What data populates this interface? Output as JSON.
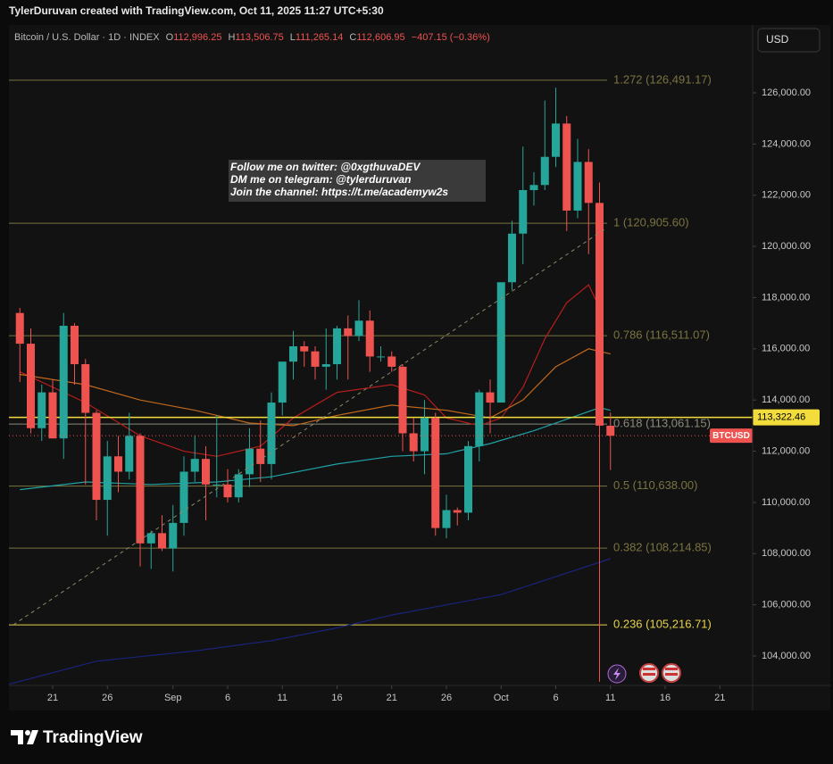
{
  "header": {
    "credit": "TylerDuruvan created with TradingView.com, Oct 11, 2025 11:27 UTC+5:30",
    "brand": "TradingView"
  },
  "chart_data": {
    "type": "candlestick",
    "symbol": "Bitcoin / U.S. Dollar · 1D · INDEX",
    "legend": [
      {
        "key": "O",
        "value": "112,996.25"
      },
      {
        "key": "H",
        "value": "113,506.75"
      },
      {
        "key": "L",
        "value": "111,265.14"
      },
      {
        "key": "C",
        "value": "112,606.95"
      }
    ],
    "change": "−407.15 (−0.36%)",
    "currency": "USD",
    "up_color": "#26a69a",
    "down_color": "#ef5350",
    "x": [
      "2025-08-18",
      "2025-08-19",
      "2025-08-20",
      "2025-08-21",
      "2025-08-22",
      "2025-08-23",
      "2025-08-24",
      "2025-08-25",
      "2025-08-26",
      "2025-08-27",
      "2025-08-28",
      "2025-08-29",
      "2025-08-30",
      "2025-08-31",
      "2025-09-01",
      "2025-09-02",
      "2025-09-03",
      "2025-09-04",
      "2025-09-05",
      "2025-09-06",
      "2025-09-07",
      "2025-09-08",
      "2025-09-09",
      "2025-09-10",
      "2025-09-11",
      "2025-09-12",
      "2025-09-13",
      "2025-09-14",
      "2025-09-15",
      "2025-09-16",
      "2025-09-17",
      "2025-09-18",
      "2025-09-19",
      "2025-09-20",
      "2025-09-21",
      "2025-09-22",
      "2025-09-23",
      "2025-09-24",
      "2025-09-25",
      "2025-09-26",
      "2025-09-27",
      "2025-09-28",
      "2025-09-29",
      "2025-09-30",
      "2025-10-01",
      "2025-10-02",
      "2025-10-03",
      "2025-10-04",
      "2025-10-05",
      "2025-10-06",
      "2025-10-07",
      "2025-10-08",
      "2025-10-09",
      "2025-10-10",
      "2025-10-11"
    ],
    "open": [
      117400,
      116200,
      112900,
      114300,
      112500,
      116900,
      115400,
      113500,
      110100,
      111800,
      111200,
      112600,
      108400,
      108800,
      108200,
      109200,
      111200,
      111700,
      110700,
      110700,
      110200,
      111100,
      112100,
      111500,
      113900,
      115500,
      116100,
      115900,
      115300,
      115400,
      116800,
      116500,
      117100,
      115700,
      115700,
      115300,
      112700,
      112000,
      113300,
      109000,
      109700,
      109600,
      112200,
      114300,
      113900,
      118600,
      120500,
      122200,
      122400,
      123500,
      124800,
      121400,
      123300,
      121700,
      112996.25
    ],
    "high": [
      117600,
      116800,
      114600,
      114800,
      117400,
      117000,
      115600,
      113600,
      112400,
      112600,
      113500,
      112700,
      108900,
      109500,
      109900,
      111800,
      112600,
      112200,
      113400,
      111300,
      111300,
      112900,
      113200,
      114300,
      115500,
      116700,
      116300,
      116100,
      116800,
      116900,
      117300,
      117900,
      117500,
      116100,
      115900,
      115400,
      113300,
      114000,
      113500,
      110300,
      109800,
      112400,
      114400,
      114800,
      118600,
      121000,
      123900,
      122900,
      125700,
      126200,
      125100,
      124200,
      123800,
      122500,
      113506.75
    ],
    "low": [
      114700,
      112700,
      112400,
      112600,
      111700,
      114600,
      110700,
      109300,
      108700,
      110400,
      110900,
      107500,
      107400,
      108100,
      107300,
      108700,
      110800,
      109300,
      110200,
      110000,
      110000,
      110600,
      110800,
      110900,
      113400,
      114800,
      115300,
      114800,
      114400,
      114800,
      114800,
      116300,
      115100,
      115500,
      115100,
      112000,
      111600,
      111100,
      108700,
      108600,
      109100,
      109300,
      111600,
      112700,
      113900,
      118300,
      119300,
      121600,
      122200,
      123100,
      120600,
      121100,
      119700,
      103000,
      111265.14
    ],
    "close": [
      116200,
      112900,
      114300,
      112500,
      116900,
      115400,
      113500,
      110100,
      111800,
      111200,
      112600,
      108400,
      108800,
      108200,
      109200,
      111200,
      111700,
      110700,
      110700,
      110200,
      111100,
      112100,
      111500,
      113900,
      115500,
      116100,
      115900,
      115300,
      115400,
      116800,
      116500,
      117100,
      115700,
      115700,
      115300,
      112700,
      112000,
      113300,
      109000,
      109700,
      109600,
      112200,
      114300,
      113900,
      118600,
      120500,
      122200,
      122400,
      123500,
      124800,
      121400,
      123300,
      121700,
      113000,
      112606.95
    ],
    "overlays": [
      {
        "color": "#b71c1c",
        "x": [
          "2025-08-18",
          "2025-08-24",
          "2025-08-29",
          "2025-09-02",
          "2025-09-05",
          "2025-09-09",
          "2025-09-12",
          "2025-09-16",
          "2025-09-21",
          "2025-09-24",
          "2025-09-26",
          "2025-09-29",
          "2025-10-01",
          "2025-10-03",
          "2025-10-05",
          "2025-10-07",
          "2025-10-09",
          "2025-10-10"
        ],
        "values": [
          115100,
          113900,
          112600,
          112000,
          111800,
          112200,
          113300,
          114300,
          114600,
          114200,
          113300,
          113000,
          113300,
          114500,
          116400,
          117800,
          118500,
          117600
        ]
      },
      {
        "color": "#c0681c",
        "x": [
          "2025-08-18",
          "2025-08-24",
          "2025-08-29",
          "2025-09-03",
          "2025-09-08",
          "2025-09-12",
          "2025-09-16",
          "2025-09-21",
          "2025-09-26",
          "2025-09-30",
          "2025-10-03",
          "2025-10-06",
          "2025-10-09",
          "2025-10-11"
        ],
        "values": [
          115000,
          114600,
          114000,
          113600,
          113100,
          113000,
          113400,
          113800,
          113600,
          113300,
          114000,
          115300,
          116000,
          115800
        ]
      },
      {
        "color": "#1fa2a6",
        "x": [
          "2025-08-18",
          "2025-08-24",
          "2025-08-30",
          "2025-09-05",
          "2025-09-10",
          "2025-09-16",
          "2025-09-21",
          "2025-09-26",
          "2025-09-30",
          "2025-10-04",
          "2025-10-08",
          "2025-10-10",
          "2025-10-11"
        ],
        "values": [
          110500,
          110800,
          110700,
          110800,
          111000,
          111500,
          111800,
          111900,
          112300,
          112800,
          113400,
          113700,
          113600
        ]
      },
      {
        "color": "#1a237e",
        "x": [
          "2025-08-17",
          "2025-08-25",
          "2025-09-03",
          "2025-09-10",
          "2025-09-16",
          "2025-09-21",
          "2025-09-26",
          "2025-10-01",
          "2025-10-06",
          "2025-10-11"
        ],
        "values": [
          102900,
          103800,
          104200,
          104600,
          105100,
          105600,
          106000,
          106400,
          107100,
          107800
        ]
      }
    ],
    "fib_levels": [
      {
        "price": 126491.17,
        "label": "1.272 (126,491.17)",
        "color": "#7a7440"
      },
      {
        "price": 120905.6,
        "label": "1 (120,905.60)",
        "color": "#7a7440"
      },
      {
        "price": 116511.07,
        "label": "0.786 (116,511.07)",
        "color": "#7a7440"
      },
      {
        "price": 113061.15,
        "label": "0.618 (113,061.15)",
        "color": "#8a8a7a"
      },
      {
        "price": 110638,
        "label": "0.5 (110,638.00)",
        "color": "#7a7440"
      },
      {
        "price": 108214.85,
        "label": "0.382 (108,214.85)",
        "color": "#7a7440"
      },
      {
        "price": 105216.71,
        "label": "0.236 (105,216.71)",
        "color": "#e6d34a"
      }
    ],
    "last_price": 113322.46,
    "last_price_label": "113,322.46",
    "last_price_color": "#f2dd3c",
    "close_tag": "BTCUSD",
    "note": [
      "Follow me on twitter: @0xgthuvaDEV",
      "DM me on telegram: @tylerduruvan",
      "Join the channel: https://t.me/academyw2s"
    ],
    "xlim": [
      "2025-08-17",
      "2025-10-24"
    ],
    "xticks": [
      {
        "value": "2025-08-21",
        "label": "21"
      },
      {
        "value": "2025-08-26",
        "label": "26"
      },
      {
        "value": "2025-09-01",
        "label": "Sep"
      },
      {
        "value": "2025-09-06",
        "label": "6"
      },
      {
        "value": "2025-09-11",
        "label": "11"
      },
      {
        "value": "2025-09-16",
        "label": "16"
      },
      {
        "value": "2025-09-21",
        "label": "21"
      },
      {
        "value": "2025-09-26",
        "label": "26"
      },
      {
        "value": "2025-10-01",
        "label": "Oct"
      },
      {
        "value": "2025-10-06",
        "label": "6"
      },
      {
        "value": "2025-10-11",
        "label": "11"
      },
      {
        "value": "2025-10-16",
        "label": "16"
      },
      {
        "value": "2025-10-21",
        "label": "21"
      }
    ],
    "ylim": [
      102850,
      128650
    ],
    "yticks": [
      {
        "value": 104000,
        "label": "104,000.00"
      },
      {
        "value": 106000,
        "label": "106,000.00"
      },
      {
        "value": 108000,
        "label": "108,000.00"
      },
      {
        "value": 110000,
        "label": "110,000.00"
      },
      {
        "value": 112000,
        "label": "112,000.00"
      },
      {
        "value": 114000,
        "label": "114,000.00"
      },
      {
        "value": 116000,
        "label": "116,000.00"
      },
      {
        "value": 118000,
        "label": "118,000.00"
      },
      {
        "value": 120000,
        "label": "120,000.00"
      },
      {
        "value": 122000,
        "label": "122,000.00"
      },
      {
        "value": 124000,
        "label": "124,000.00"
      },
      {
        "value": 126000,
        "label": "126,000.00"
      }
    ]
  }
}
